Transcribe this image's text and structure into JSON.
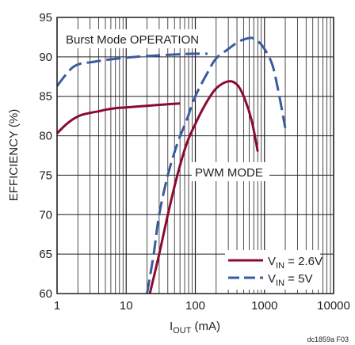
{
  "chart_data": {
    "type": "line",
    "xlabel": "I",
    "xlabel_sub": "OUT",
    "xlabel_unit": " (mA)",
    "ylabel": "EFFICIENCY (%)",
    "xscale": "log",
    "xlim": [
      1,
      10000
    ],
    "ylim": [
      60,
      95
    ],
    "xticks": [
      1,
      10,
      100,
      1000,
      10000
    ],
    "xtick_labels": [
      "1",
      "10",
      "100",
      "1000",
      "10000"
    ],
    "yticks": [
      60,
      65,
      70,
      75,
      80,
      85,
      90,
      95
    ],
    "ytick_labels": [
      "60",
      "65",
      "70",
      "75",
      "80",
      "85",
      "90",
      "95"
    ],
    "grid": true,
    "legend_position": "bottom-right",
    "annotations": [
      "Burst Mode OPERATION",
      "PWM MODE"
    ],
    "figure_id": "dc1859a F03",
    "series": [
      {
        "label_main": "V",
        "label_sub": "IN",
        "label_rest": " = 2.6V",
        "color": "#8b0a2e",
        "dash": "solid",
        "segments": [
          [
            [
              1,
              80.3
            ],
            [
              1.3,
              81.3
            ],
            [
              1.7,
              82.1
            ],
            [
              2.2,
              82.6
            ],
            [
              3,
              82.9
            ],
            [
              4,
              83.1
            ],
            [
              5,
              83.3
            ],
            [
              7,
              83.5
            ],
            [
              10,
              83.6
            ],
            [
              20,
              83.8
            ],
            [
              40,
              84.0
            ],
            [
              60,
              84.1
            ]
          ],
          [
            [
              22,
              60
            ],
            [
              30,
              65
            ],
            [
              40,
              70
            ],
            [
              55,
              75
            ],
            [
              75,
              79
            ],
            [
              100,
              81.5
            ],
            [
              140,
              84
            ],
            [
              200,
              86
            ],
            [
              300,
              86.9
            ],
            [
              400,
              86.5
            ],
            [
              500,
              85
            ],
            [
              650,
              82
            ],
            [
              800,
              78
            ]
          ]
        ]
      },
      {
        "label_main": "V",
        "label_sub": "IN",
        "label_rest": " = 5V",
        "color": "#3a5ba0",
        "dash": "dashed",
        "segments": [
          [
            [
              1,
              86.3
            ],
            [
              1.3,
              87.6
            ],
            [
              1.7,
              88.7
            ],
            [
              2.3,
              89.2
            ],
            [
              3,
              89.3
            ],
            [
              5,
              89.6
            ],
            [
              10,
              89.9
            ],
            [
              20,
              90.1
            ],
            [
              50,
              90.3
            ],
            [
              100,
              90.4
            ],
            [
              150,
              90.4
            ]
          ],
          [
            [
              20,
              60
            ],
            [
              25,
              65
            ],
            [
              30,
              70
            ],
            [
              40,
              75
            ],
            [
              55,
              79
            ],
            [
              75,
              82
            ],
            [
              100,
              85
            ],
            [
              150,
              88
            ],
            [
              200,
              89.8
            ],
            [
              300,
              91
            ],
            [
              400,
              91.8
            ],
            [
              500,
              92.2
            ],
            [
              650,
              92.4
            ],
            [
              800,
              92
            ],
            [
              1000,
              91
            ],
            [
              1300,
              89
            ],
            [
              1600,
              85.5
            ],
            [
              2000,
              81
            ]
          ]
        ]
      }
    ]
  }
}
